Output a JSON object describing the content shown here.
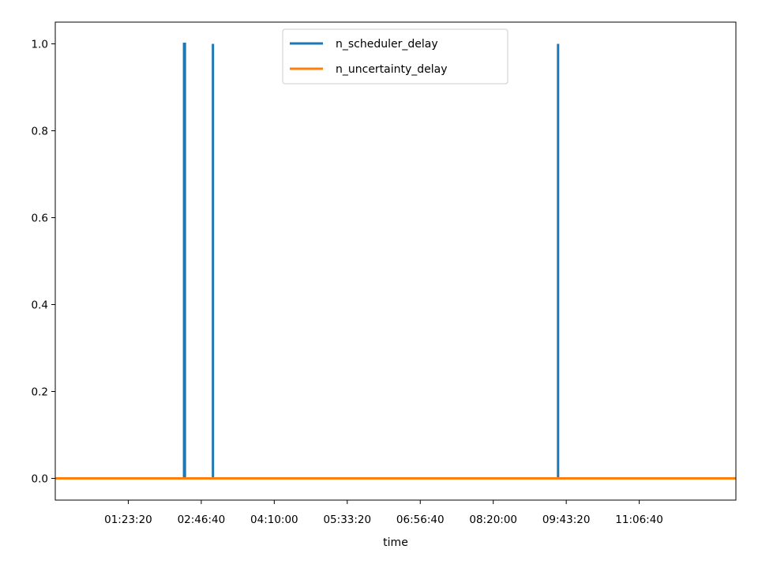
{
  "chart_data": {
    "type": "line",
    "title": "",
    "xlabel": "time",
    "ylabel": "",
    "x_axis_kind": "time (h:mm:ss)",
    "xlim": [
      "00:00:00",
      "12:57:00"
    ],
    "ylim": [
      -0.05,
      1.05
    ],
    "x_ticks": [
      "01:23:20",
      "02:46:40",
      "04:10:00",
      "05:33:20",
      "06:56:40",
      "08:20:00",
      "09:43:20",
      "11:06:40"
    ],
    "y_ticks": [
      "0.0",
      "0.2",
      "0.4",
      "0.6",
      "0.8",
      "1.0"
    ],
    "grid": false,
    "legend": {
      "position": "top-center",
      "entries": [
        "n_scheduler_delay",
        "n_uncertainty_delay"
      ]
    },
    "series": [
      {
        "name": "n_scheduler_delay",
        "color": "#1f77b4",
        "points": [
          [
            "00:00:00",
            0
          ],
          [
            "02:27:00",
            0
          ],
          [
            "02:27:00",
            1
          ],
          [
            "02:28:00",
            1
          ],
          [
            "02:28:00",
            0
          ],
          [
            "03:00:00",
            0
          ],
          [
            "03:00:00",
            1
          ],
          [
            "03:00:00",
            0
          ],
          [
            "09:34:00",
            0
          ],
          [
            "09:34:00",
            1
          ],
          [
            "09:34:00",
            0
          ],
          [
            "12:57:00",
            0
          ]
        ]
      },
      {
        "name": "n_uncertainty_delay",
        "color": "#ff7f0e",
        "points": [
          [
            "00:00:00",
            0
          ],
          [
            "12:57:00",
            0
          ]
        ]
      }
    ]
  }
}
